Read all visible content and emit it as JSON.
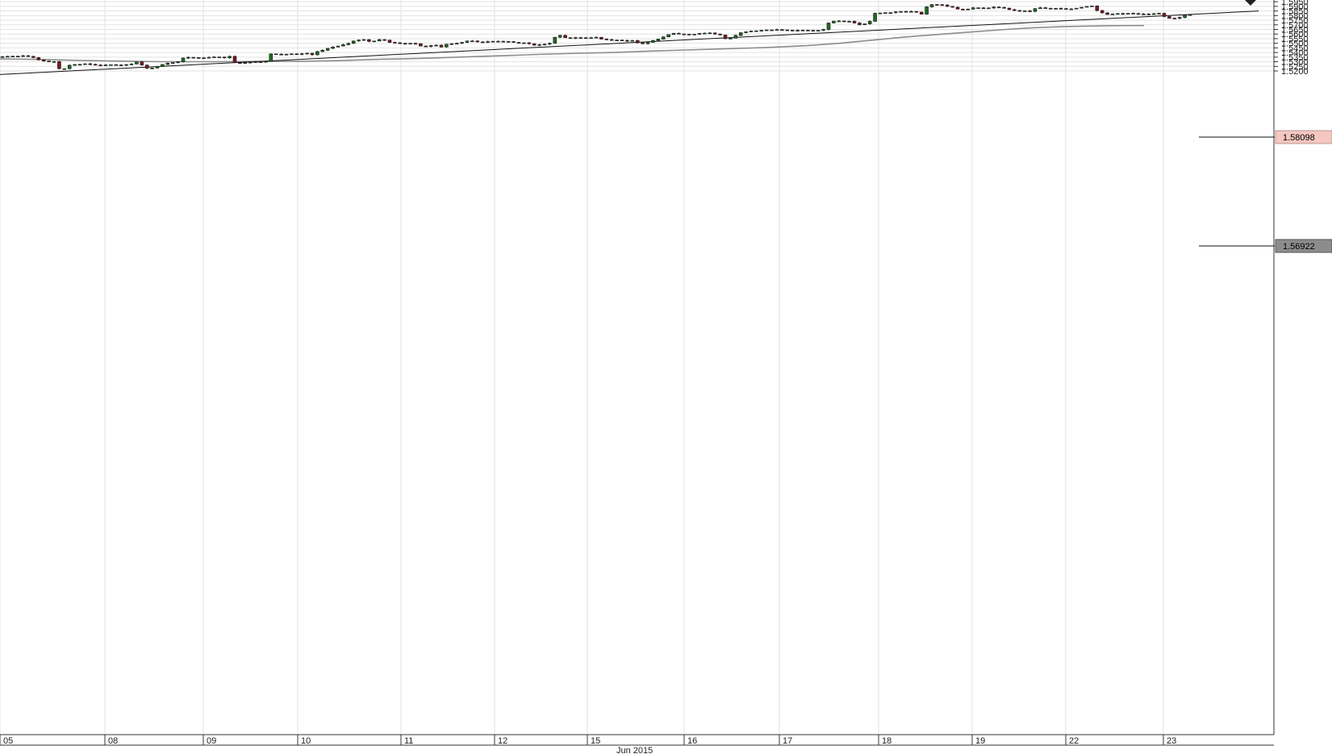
{
  "chart_data": {
    "type": "candlestick",
    "period_label": "Jun 2015",
    "y_ticks": [
      "1.5200",
      "1.5250",
      "1.5300",
      "1.5350",
      "1.5400",
      "1.5450",
      "1.5500",
      "1.5550",
      "1.5600",
      "1.5650",
      "1.5700",
      "1.5750",
      "1.5800",
      "1.5850",
      "1.5900",
      "1.5950"
    ],
    "ylim": [
      1.516,
      1.596
    ],
    "x_ticks": [
      "05",
      "08",
      "09",
      "10",
      "11",
      "12",
      "15",
      "16",
      "17",
      "18",
      "19",
      "22",
      "23"
    ],
    "last_price": "1.58098",
    "ma_value": "1.56922",
    "grid": true,
    "colors": {
      "bullish": "#1e6b1e",
      "bearish": "#7a1a22",
      "wick": "#222222",
      "moving_average": "#8c8c8c",
      "trendline": "#111111",
      "grid": "#e2e2e2",
      "last_price_tag": "#f6c6c0",
      "ma_tag": "#8c8c8c"
    },
    "trendline": {
      "start": [
        0,
        1.5162
      ],
      "end": [
        1560,
        1.585
      ]
    },
    "moving_average": [
      [
        0,
        1.533
      ],
      [
        50,
        1.5325
      ],
      [
        100,
        1.5315
      ],
      [
        150,
        1.5307
      ],
      [
        200,
        1.5301
      ],
      [
        260,
        1.5301
      ],
      [
        320,
        1.5302
      ],
      [
        380,
        1.5306
      ],
      [
        420,
        1.5312
      ],
      [
        470,
        1.5326
      ],
      [
        530,
        1.5338
      ],
      [
        580,
        1.5354
      ],
      [
        630,
        1.5368
      ],
      [
        680,
        1.5384
      ],
      [
        720,
        1.5392
      ],
      [
        760,
        1.54
      ],
      [
        800,
        1.5413
      ],
      [
        850,
        1.5427
      ],
      [
        900,
        1.544
      ],
      [
        950,
        1.5454
      ],
      [
        1000,
        1.5474
      ],
      [
        1040,
        1.55
      ],
      [
        1080,
        1.5533
      ],
      [
        1120,
        1.5566
      ],
      [
        1160,
        1.5594
      ],
      [
        1200,
        1.562
      ],
      [
        1240,
        1.5646
      ],
      [
        1280,
        1.5668
      ],
      [
        1320,
        1.5681
      ],
      [
        1380,
        1.5691
      ],
      [
        1418,
        1.5692
      ]
    ],
    "prices": [
      1.5355,
      1.5358,
      1.536,
      1.5358,
      1.5365,
      1.5358,
      1.5345,
      1.532,
      1.5308,
      1.53,
      1.5302,
      1.5225,
      1.5225,
      1.5262,
      1.527,
      1.5272,
      1.5278,
      1.5272,
      1.5265,
      1.5262,
      1.5266,
      1.5268,
      1.5265,
      1.5262,
      1.527,
      1.5275,
      1.5298,
      1.5265,
      1.523,
      1.5232,
      1.5248,
      1.527,
      1.5285,
      1.529,
      1.53,
      1.534,
      1.5348,
      1.5345,
      1.534,
      1.5342,
      1.5348,
      1.5352,
      1.535,
      1.5342,
      1.5358,
      1.529,
      1.5288,
      1.529,
      1.5295,
      1.53,
      1.5295,
      1.5305,
      1.5385,
      1.5382,
      1.538,
      1.5382,
      1.5385,
      1.538,
      1.5388,
      1.5392,
      1.5375,
      1.541,
      1.5425,
      1.5445,
      1.546,
      1.547,
      1.5485,
      1.55,
      1.5525,
      1.5535,
      1.554,
      1.552,
      1.5525,
      1.554,
      1.5535,
      1.551,
      1.5505,
      1.55,
      1.5495,
      1.55,
      1.5495,
      1.547,
      1.5465,
      1.5475,
      1.548,
      1.546,
      1.549,
      1.5495,
      1.55,
      1.551,
      1.5525,
      1.5525,
      1.5515,
      1.551,
      1.5518,
      1.5522,
      1.5522,
      1.552,
      1.5518,
      1.551,
      1.55,
      1.5505,
      1.5495,
      1.548,
      1.5485,
      1.549,
      1.55,
      1.5565,
      1.5585,
      1.556,
      1.5555,
      1.5562,
      1.556,
      1.5558,
      1.556,
      1.5565,
      1.5545,
      1.554,
      1.5535,
      1.5535,
      1.553,
      1.5525,
      1.553,
      1.5505,
      1.5495,
      1.551,
      1.553,
      1.5545,
      1.557,
      1.5595,
      1.5608,
      1.56,
      1.5598,
      1.5595,
      1.5598,
      1.5608,
      1.561,
      1.5612,
      1.56,
      1.559,
      1.555,
      1.5555,
      1.5585,
      1.5615,
      1.5625,
      1.5632,
      1.5635,
      1.564,
      1.5645,
      1.5645,
      1.5648,
      1.5645,
      1.5642,
      1.5638,
      1.564,
      1.5642,
      1.564,
      1.5635,
      1.564,
      1.565,
      1.572,
      1.574,
      1.5742,
      1.5735,
      1.5738,
      1.572,
      1.57,
      1.571,
      1.5738,
      1.5825,
      1.5828,
      1.5832,
      1.583,
      1.584,
      1.5845,
      1.5842,
      1.5845,
      1.5838,
      1.5815,
      1.5895,
      1.592,
      1.5918,
      1.5915,
      1.59,
      1.589,
      1.587,
      1.5865,
      1.587,
      1.5885,
      1.5883,
      1.588,
      1.5882,
      1.5892,
      1.5888,
      1.588,
      1.5865,
      1.5855,
      1.585,
      1.5852,
      1.5845,
      1.5875,
      1.5885,
      1.588,
      1.587,
      1.5878,
      1.5875,
      1.5872,
      1.5872,
      1.588,
      1.589,
      1.59,
      1.5905,
      1.5855,
      1.583,
      1.5812,
      1.5818,
      1.5822,
      1.5818,
      1.5825,
      1.5822,
      1.5818,
      1.5818,
      1.5815,
      1.582,
      1.5825,
      1.579,
      1.5772,
      1.577,
      1.578,
      1.5805,
      1.58098
    ]
  }
}
